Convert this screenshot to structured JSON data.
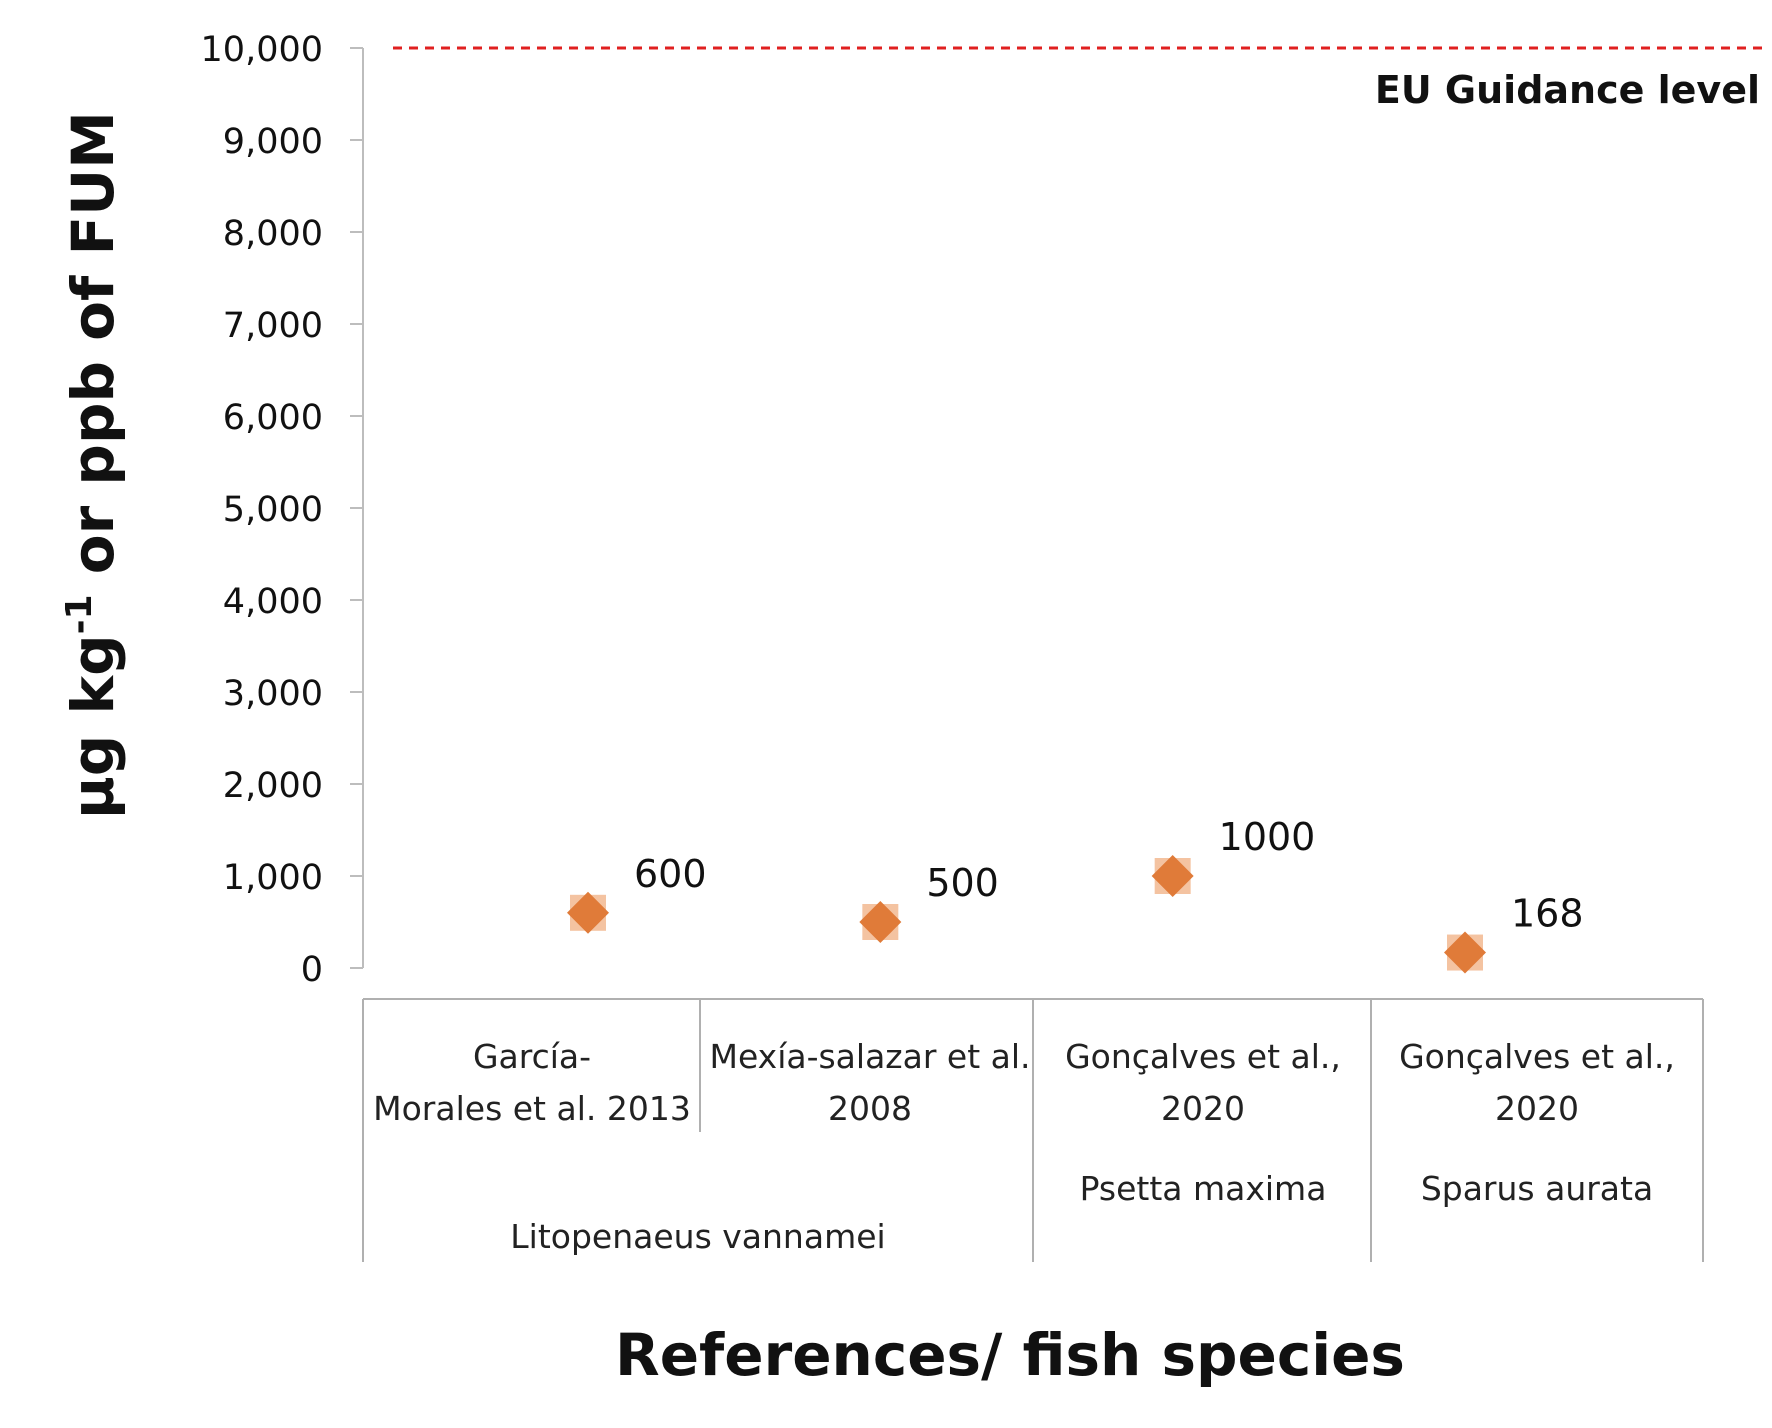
{
  "chart_data": {
    "type": "scatter",
    "ylabel": "µg kg",
    "ylabel_sup": "-1",
    "ylabel_suffix": " or ppb of FUM",
    "xlabel": "References/ fish species",
    "ylim": [
      0,
      10000
    ],
    "y_ticks": [
      "0",
      "1,000",
      "2,000",
      "3,000",
      "4,000",
      "5,000",
      "6,000",
      "7,000",
      "8,000",
      "9,000",
      "10,000"
    ],
    "grid": false,
    "marker_color": "#e07b39",
    "categories": [
      {
        "reference_lines": [
          "García-",
          "Morales et al. 2013"
        ],
        "species": "Litopenaeus vannamei"
      },
      {
        "reference_lines": [
          "Mexía-salazar et al.",
          "2008"
        ],
        "species": "Litopenaeus vannamei"
      },
      {
        "reference_lines": [
          "Gonçalves et al.,",
          "2020"
        ],
        "species": "Psetta maxima"
      },
      {
        "reference_lines": [
          "Gonçalves et al.,",
          "2020"
        ],
        "species": "Sparus aurata"
      }
    ],
    "values": [
      600,
      500,
      1000,
      168
    ],
    "data_labels": [
      "600",
      "500",
      "1000",
      "168"
    ],
    "reference_line": {
      "value": 10000,
      "label": "EU Guidance level",
      "color": "#e02020",
      "style": "dashed"
    }
  }
}
